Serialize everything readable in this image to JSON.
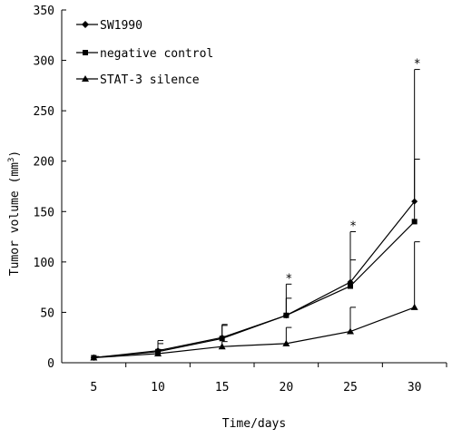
{
  "chart_data": {
    "type": "line",
    "x": [
      5,
      10,
      15,
      20,
      25,
      30
    ],
    "xlabel": "Time/days",
    "ylabel": "Tumor volume (mm",
    "ylabel_sup": "3",
    "ylabel_close": ")",
    "xlim": [
      2.5,
      32.5
    ],
    "ylim": [
      0,
      350
    ],
    "yticks": [
      0,
      50,
      100,
      150,
      200,
      250,
      300,
      350
    ],
    "xticks": [
      5,
      10,
      15,
      20,
      25,
      30
    ],
    "grid": false,
    "legend_position": "top-left",
    "series": [
      {
        "name": "SW1990",
        "marker": "diamond",
        "values": [
          5,
          12,
          25,
          47,
          80,
          160
        ],
        "error_upper": [
          1,
          10,
          12,
          17,
          22,
          42
        ]
      },
      {
        "name": "negative control",
        "marker": "square",
        "values": [
          5,
          11,
          24,
          47,
          76,
          140
        ],
        "error_upper": [
          1,
          8,
          14,
          31,
          54,
          151
        ]
      },
      {
        "name": "STAT-3 silence",
        "marker": "triangle",
        "values": [
          5,
          9,
          16,
          19,
          31,
          55
        ],
        "error_upper": [
          1,
          4,
          5,
          16,
          24,
          65
        ]
      }
    ],
    "annotations": [
      {
        "x": 20,
        "text": "*"
      },
      {
        "x": 25,
        "text": "*"
      },
      {
        "x": 30,
        "text": "*"
      }
    ]
  }
}
